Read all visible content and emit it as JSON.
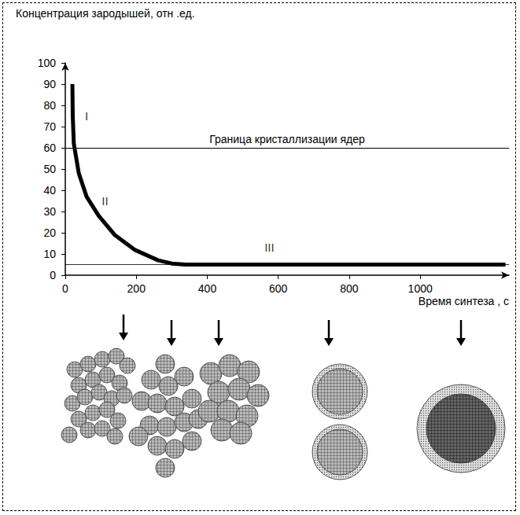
{
  "chart_data": {
    "type": "line",
    "y_label": "Концентрация зародышей, отн .ед.",
    "x_label": "Время синтеза , с",
    "x": [
      20,
      21,
      24,
      38,
      60,
      94,
      139,
      195,
      262,
      300,
      340,
      1240
    ],
    "values": [
      90,
      75,
      62,
      48,
      37,
      28,
      19,
      12,
      7,
      5.5,
      5,
      5
    ],
    "color": "#000000",
    "xlim": [
      0,
      1250
    ],
    "xticks": [
      0,
      200,
      400,
      600,
      800,
      1000
    ],
    "ylim": [
      0,
      100
    ],
    "yticks": [
      0,
      10,
      20,
      30,
      40,
      50,
      60,
      70,
      80,
      90,
      100
    ],
    "grid": false,
    "reference_lines": [
      {
        "y": 60,
        "label": "Граница кристаллизации ядер"
      },
      {
        "y": 5
      }
    ],
    "annotations": [
      {
        "text": "I",
        "x": 60,
        "y": 75
      },
      {
        "text": "II",
        "x": 112,
        "y": 35
      },
      {
        "text": "III",
        "x": 575,
        "y": 13
      }
    ]
  }
}
